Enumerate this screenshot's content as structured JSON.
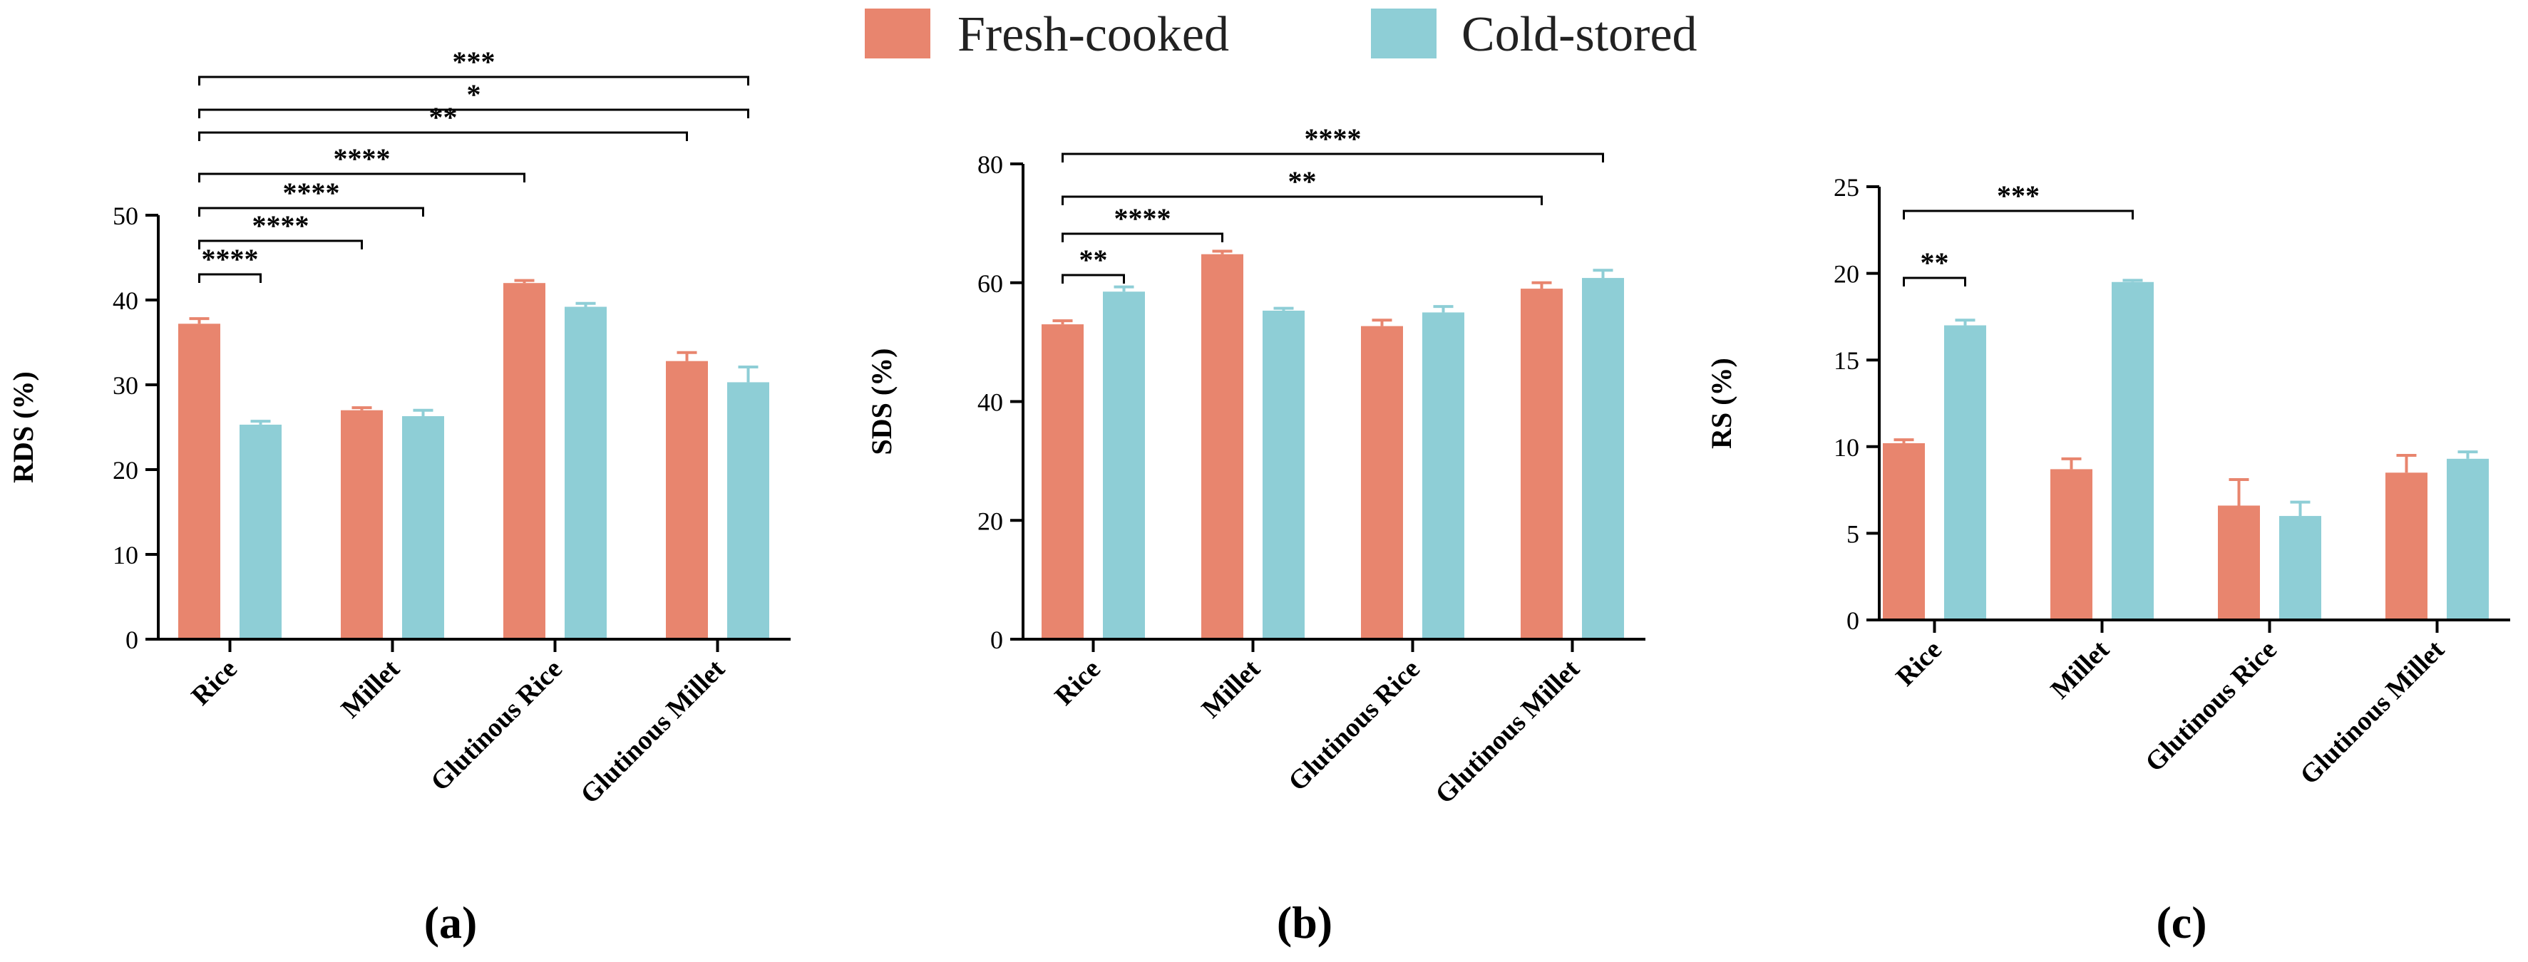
{
  "legend": {
    "fresh_label": "Fresh-cooked",
    "cold_label": "Cold-stored",
    "fresh_color": "#E8856E",
    "cold_color": "#8ECED6"
  },
  "chart_data": [
    {
      "type": "bar",
      "panel_label": "(a)",
      "ylabel": "RDS (%)",
      "ylim": [
        0,
        50
      ],
      "yticks": [
        0,
        10,
        20,
        30,
        40,
        50
      ],
      "categories": [
        "Rice",
        "Millet",
        "Glutinous Rice",
        "Glutinous Millet"
      ],
      "series": [
        {
          "name": "Fresh-cooked",
          "values": [
            37.2,
            27.0,
            42.0,
            32.8
          ],
          "errors": [
            0.6,
            0.3,
            0.3,
            1.0
          ]
        },
        {
          "name": "Cold-stored",
          "values": [
            25.3,
            26.3,
            39.2,
            30.3
          ],
          "errors": [
            0.4,
            0.7,
            0.4,
            1.8
          ]
        }
      ],
      "significance": [
        {
          "label": "****",
          "from": [
            0,
            0
          ],
          "to": [
            0,
            1
          ]
        },
        {
          "label": "****",
          "from": [
            0,
            0
          ],
          "to": [
            1,
            0
          ]
        },
        {
          "label": "****",
          "from": [
            0,
            0
          ],
          "to": [
            1,
            1
          ]
        },
        {
          "label": "****",
          "from": [
            0,
            0
          ],
          "to": [
            2,
            0
          ]
        },
        {
          "label": "**",
          "from": [
            0,
            0
          ],
          "to": [
            3,
            0
          ]
        },
        {
          "label": "*",
          "from": [
            0,
            0
          ],
          "to": [
            3,
            1
          ]
        },
        {
          "label": "***",
          "from": [
            0,
            0
          ],
          "to": [
            3,
            1
          ]
        }
      ]
    },
    {
      "type": "bar",
      "panel_label": "(b)",
      "ylabel": "SDS (%)",
      "ylim": [
        0,
        80
      ],
      "yticks": [
        0,
        20,
        40,
        60,
        80
      ],
      "categories": [
        "Rice",
        "Millet",
        "Glutinous Rice",
        "Glutinous Millet"
      ],
      "series": [
        {
          "name": "Fresh-cooked",
          "values": [
            53.0,
            64.8,
            52.7,
            59.0
          ],
          "errors": [
            0.6,
            0.5,
            1.0,
            1.0
          ]
        },
        {
          "name": "Cold-stored",
          "values": [
            58.5,
            55.3,
            55.0,
            60.8
          ],
          "errors": [
            0.8,
            0.4,
            1.0,
            1.3
          ]
        }
      ],
      "significance": [
        {
          "label": "**",
          "from": [
            0,
            0
          ],
          "to": [
            0,
            1
          ]
        },
        {
          "label": "****",
          "from": [
            0,
            0
          ],
          "to": [
            1,
            0
          ]
        },
        {
          "label": "**",
          "from": [
            0,
            0
          ],
          "to": [
            3,
            0
          ]
        },
        {
          "label": "****",
          "from": [
            0,
            0
          ],
          "to": [
            3,
            1
          ]
        }
      ]
    },
    {
      "type": "bar",
      "panel_label": "(c)",
      "ylabel": "RS (%)",
      "ylim": [
        0,
        25
      ],
      "yticks": [
        0,
        5,
        10,
        15,
        20,
        25
      ],
      "categories": [
        "Rice",
        "Millet",
        "Glutinous Rice",
        "Glutinous Millet"
      ],
      "series": [
        {
          "name": "Fresh-cooked",
          "values": [
            10.2,
            8.7,
            6.6,
            8.5
          ],
          "errors": [
            0.2,
            0.6,
            1.5,
            1.0
          ]
        },
        {
          "name": "Cold-stored",
          "values": [
            17.0,
            19.5,
            6.0,
            9.3
          ],
          "errors": [
            0.3,
            0.1,
            0.8,
            0.4
          ]
        }
      ],
      "significance": [
        {
          "label": "**",
          "from": [
            0,
            0
          ],
          "to": [
            0,
            1
          ]
        },
        {
          "label": "***",
          "from": [
            0,
            0
          ],
          "to": [
            1,
            1
          ]
        }
      ]
    }
  ]
}
